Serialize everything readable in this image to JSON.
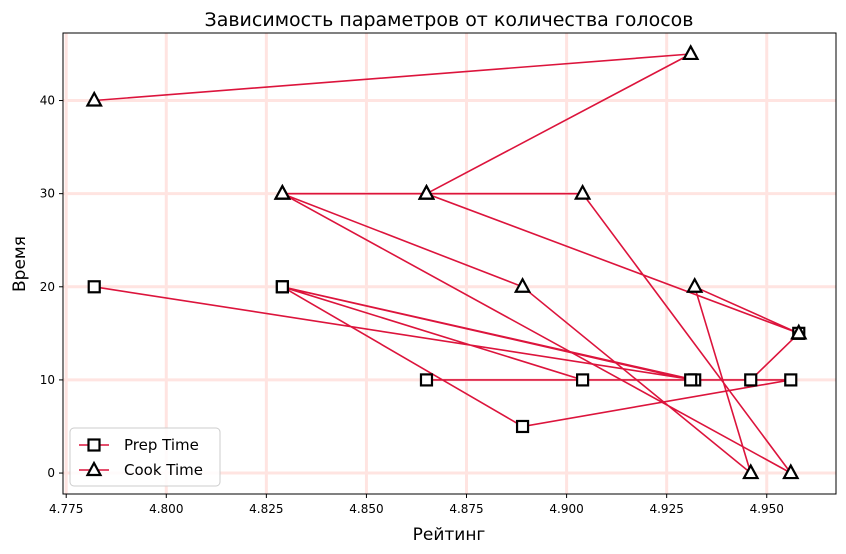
{
  "chart_data": {
    "type": "line",
    "title": "Зависимость параметров от количества голосов",
    "xlabel": "Рейтинг",
    "ylabel": "Время",
    "xlim": [
      4.7742,
      4.9673
    ],
    "ylim": [
      -2.25,
      47.25
    ],
    "xticks": [
      "4.775",
      "4.800",
      "4.825",
      "4.850",
      "4.875",
      "4.900",
      "4.925",
      "4.950"
    ],
    "yticks": [
      "0",
      "10",
      "20",
      "30",
      "40"
    ],
    "grid": true,
    "legend_position": "lower-left",
    "line_color": "#dc143c",
    "grid_color": "#ffe4e1",
    "series": [
      {
        "name": "Prep Time",
        "marker": "square",
        "x": [
          4.782,
          4.932,
          4.829,
          4.904,
          4.931,
          4.829,
          4.889,
          4.956,
          4.865,
          4.946,
          4.958
        ],
        "y": [
          20,
          10,
          20,
          10,
          10,
          20,
          5,
          10,
          10,
          10,
          15
        ]
      },
      {
        "name": "Cook Time",
        "marker": "triangle",
        "x": [
          4.782,
          4.931,
          4.865,
          4.904,
          4.956,
          4.829,
          4.889,
          4.946,
          4.932,
          4.958,
          4.865,
          4.829
        ],
        "y": [
          40,
          45,
          30,
          30,
          0,
          30,
          20,
          0,
          20,
          15,
          30,
          30
        ]
      }
    ]
  }
}
